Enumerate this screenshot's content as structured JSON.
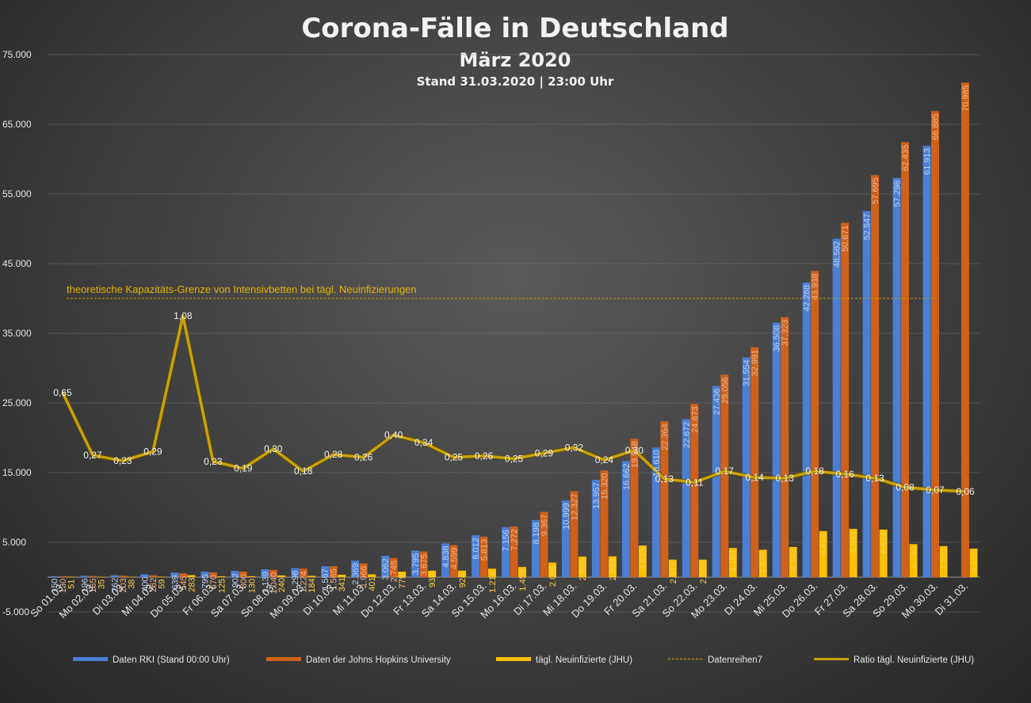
{
  "chart_data": {
    "type": "bar",
    "title": "Corona-Fälle in Deutschland",
    "subtitle": "März 2020",
    "subsubtitle": "Stand 31.03.2020 | 23:00 Uhr",
    "ylim": [
      -5000,
      75000
    ],
    "yticks": [
      -5000,
      5000,
      15000,
      25000,
      35000,
      45000,
      55000,
      65000,
      75000
    ],
    "ytick_labels": [
      "-5.000",
      "5.000",
      "15.000",
      "25.000",
      "35.000",
      "45.000",
      "55.000",
      "65.000",
      "75.000"
    ],
    "categories": [
      "So 01.03.",
      "Mo 02.03.",
      "Di 03.03.",
      "Mi 04.03.",
      "Do 05.03.",
      "Fr 06.03.",
      "Sa 07.03.",
      "So 08.03.",
      "Mo 09.03.",
      "Di 10.03.",
      "Mi 11.03.",
      "Do 12.03.",
      "Fr 13.03.",
      "Sa 14.03.",
      "So 15.03.",
      "Mo 16.03.",
      "Di 17.03.",
      "Mi 18.03.",
      "Do 19.03.",
      "Fr 20.03.",
      "Sa 21.03.",
      "So 22.03.",
      "Mo 23.03.",
      "Di 24.03.",
      "Mi 25.03.",
      "Do 26.03.",
      "Fr 27.03.",
      "Sa 28.03.",
      "So 29.03.",
      "Mo 30.03.",
      "Di 31.03."
    ],
    "series": [
      {
        "name": "Daten RKI (Stand 00:00 Uhr)",
        "color": "#4a7fd4",
        "values": [
          150,
          196,
          262,
          400,
          639,
          795,
          902,
          1139,
          1296,
          1567,
          2369,
          3062,
          3795,
          4838,
          6012,
          7156,
          8198,
          10999,
          13957,
          16662,
          18610,
          22672,
          27436,
          31554,
          36508,
          42288,
          48582,
          52547,
          57298,
          61913,
          null
        ],
        "labels": [
          "150",
          "196",
          "262",
          "400",
          "639",
          "795",
          "902",
          "1.139",
          "1.296",
          "1.567",
          "2.369",
          "3.062",
          "3.795",
          "4.838",
          "6.012",
          "7.156",
          "8.198",
          "10.999",
          "13.957",
          "16.662",
          "18.610",
          "22.672",
          "27.436",
          "31.554",
          "36.508",
          "42.288",
          "48.582",
          "52.547",
          "57.298",
          "61.913",
          ""
        ]
      },
      {
        "name": "Daten der Johns Hopkins University",
        "color": "#d0611a",
        "values": [
          130,
          165,
          203,
          262,
          545,
          670,
          800,
          1040,
          1224,
          1565,
          1966,
          2745,
          3675,
          4599,
          5813,
          7272,
          9367,
          12327,
          15320,
          19848,
          22364,
          24873,
          29056,
          32991,
          37323,
          43938,
          50871,
          57695,
          62435,
          66885,
          70985
        ],
        "labels": [
          "130",
          "165",
          "203",
          "262",
          "545",
          "670",
          "800",
          "1.040",
          "1.224",
          "1.565",
          "1.966",
          "2.745",
          "3.675",
          "4.599",
          "5.813",
          "7.272",
          "9.367",
          "12.327",
          "15.320",
          "19.848",
          "22.364",
          "24.873",
          "29.056",
          "32.991",
          "37.323",
          "43.938",
          "50.871",
          "57.695",
          "62.435",
          "66.885",
          "70.985"
        ]
      },
      {
        "name": "tägl. Neuinfizierte (JHU)",
        "color": "#ffc000",
        "values": [
          51,
          35,
          38,
          59,
          283,
          125,
          130,
          240,
          184,
          341,
          401,
          779,
          930,
          924,
          1214,
          1459,
          2095,
          2960,
          2993,
          4528,
          2516,
          2509,
          4183,
          3935,
          4332,
          6615,
          6933,
          6824,
          4740,
          4450,
          4100
        ],
        "labels": [
          "51",
          "35",
          "38",
          "59",
          "283",
          "125",
          "130",
          "240",
          "184",
          "341",
          "401",
          "779",
          "930",
          "924",
          "1.214",
          "1.459",
          "2.095",
          "2.960",
          "2.993",
          "4.528",
          "2.516",
          "2.509",
          "4.183",
          "3.935",
          "4.332",
          "6.615",
          "6.933",
          "6.824",
          "4.740",
          "4.450",
          "4.100"
        ]
      },
      {
        "name": "Datenreihen7",
        "color": "#c79a00",
        "type": "dashed-line"
      },
      {
        "name": "Ratio tägl. Neuinfizierte (JHU)",
        "color": "#c9a20a",
        "values": [
          0.65,
          0.27,
          0.23,
          0.29,
          1.08,
          0.23,
          0.19,
          0.3,
          0.18,
          0.28,
          0.26,
          0.4,
          0.34,
          0.25,
          0.26,
          0.25,
          0.29,
          0.32,
          0.24,
          0.3,
          0.13,
          0.11,
          0.17,
          0.14,
          0.13,
          0.18,
          0.16,
          0.13,
          0.08,
          0.07,
          0.06
        ],
        "labels": [
          "0,65",
          "0,27",
          "0,23",
          "0,29",
          "1,08",
          "0,23",
          "0,19",
          "0,30",
          "0,18",
          "0,28",
          "0,26",
          "0,40",
          "0,34",
          "0,25",
          "0,26",
          "0,25",
          "0,29",
          "0,32",
          "0,24",
          "0,30",
          "0,13",
          "0,11",
          "0,17",
          "0,14",
          "0,13",
          "0,18",
          "0,16",
          "0,13",
          "0,08",
          "0,07",
          "0,06"
        ],
        "plot_y": [
          26500,
          17500,
          16700,
          18000,
          37500,
          16600,
          15600,
          18400,
          15200,
          17600,
          17200,
          20400,
          19300,
          17200,
          17400,
          17000,
          17800,
          18600,
          16800,
          18200,
          14100,
          13600,
          15200,
          14300,
          14200,
          15200,
          14800,
          14200,
          12900,
          12500,
          12300
        ]
      }
    ],
    "capacity_line": {
      "y": 40000,
      "label": "theoretische Kapazitäts-Grenze von Intensivbetten bei tägl. Neuinfizierungen"
    },
    "legend_position": "bottom",
    "grid": true
  }
}
